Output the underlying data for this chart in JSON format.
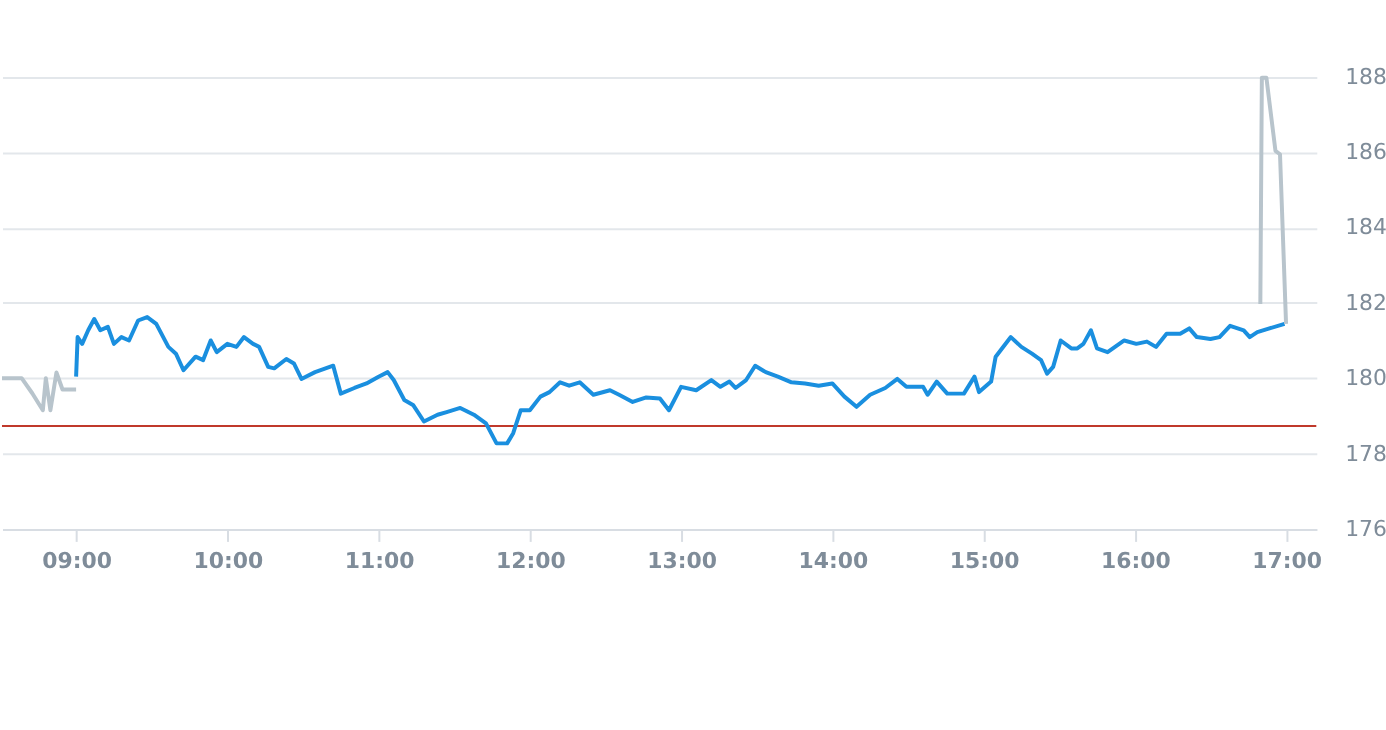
{
  "chart_data": {
    "type": "line",
    "xlim": [
      8.51,
      17.2
    ],
    "ylim": [
      176,
      190
    ],
    "xticks": [
      {
        "value": 9,
        "label": "09:00"
      },
      {
        "value": 10,
        "label": "10:00"
      },
      {
        "value": 11,
        "label": "11:00"
      },
      {
        "value": 12,
        "label": "12:00"
      },
      {
        "value": 13,
        "label": "13:00"
      },
      {
        "value": 14,
        "label": "14:00"
      },
      {
        "value": 15,
        "label": "15:00"
      },
      {
        "value": 16,
        "label": "16:00"
      },
      {
        "value": 17,
        "label": "17:00"
      }
    ],
    "yticks": [
      176,
      178,
      180,
      182,
      184,
      186,
      188
    ],
    "grid": "y",
    "marker": "none",
    "line_style": "solid",
    "series": [
      {
        "color": "#b8c4cc",
        "x": [
          8.51,
          8.64,
          8.71,
          8.78,
          8.8,
          8.83,
          8.87,
          8.91,
          9.0
        ],
        "values": [
          180.0,
          180.0,
          179.6,
          179.15,
          180.0,
          179.15,
          180.15,
          179.7,
          179.7
        ]
      },
      {
        "color": "#1a8fdf",
        "x": [
          9.0,
          9.01,
          9.04,
          9.08,
          9.12,
          9.16,
          9.21,
          9.25,
          9.3,
          9.35,
          9.41,
          9.47,
          9.53,
          9.61,
          9.66,
          9.71,
          9.79,
          9.84,
          9.89,
          9.93,
          10.0,
          10.06,
          10.11,
          10.17,
          10.21,
          10.27,
          10.31,
          10.39,
          10.44,
          10.49,
          10.58,
          10.7,
          10.75,
          10.84,
          10.92,
          11.0,
          11.06,
          11.1,
          11.17,
          11.23,
          11.3,
          11.39,
          11.45,
          11.54,
          11.63,
          11.71,
          11.78,
          11.85,
          11.89,
          11.94,
          12.0,
          12.07,
          12.13,
          12.2,
          12.26,
          12.33,
          12.42,
          12.53,
          12.59,
          12.68,
          12.77,
          12.86,
          12.92,
          13.0,
          13.1,
          13.2,
          13.26,
          13.32,
          13.36,
          13.43,
          13.49,
          13.56,
          13.64,
          13.73,
          13.82,
          13.91,
          14.0,
          14.08,
          14.16,
          14.25,
          14.35,
          14.43,
          14.49,
          14.6,
          14.63,
          14.69,
          14.76,
          14.87,
          14.94,
          14.97,
          15.05,
          15.08,
          15.18,
          15.25,
          15.32,
          15.38,
          15.42,
          15.46,
          15.51,
          15.58,
          15.62,
          15.66,
          15.71,
          15.75,
          15.82,
          15.93,
          16.01,
          16.08,
          16.14,
          16.21,
          16.3,
          16.36,
          16.41,
          16.5,
          16.56,
          16.63,
          16.72,
          16.76,
          16.81,
          16.89,
          16.99
        ],
        "values": [
          180.04,
          181.09,
          180.91,
          181.27,
          181.57,
          181.27,
          181.36,
          180.91,
          181.09,
          181.0,
          181.53,
          181.62,
          181.44,
          180.83,
          180.65,
          180.21,
          180.57,
          180.48,
          181.0,
          180.69,
          180.91,
          180.83,
          181.09,
          180.91,
          180.83,
          180.3,
          180.26,
          180.51,
          180.39,
          179.98,
          180.16,
          180.33,
          179.59,
          179.74,
          179.86,
          180.04,
          180.16,
          179.95,
          179.42,
          179.28,
          178.85,
          179.03,
          179.1,
          179.21,
          179.03,
          178.8,
          178.27,
          178.27,
          178.54,
          179.15,
          179.15,
          179.51,
          179.63,
          179.89,
          179.8,
          179.89,
          179.56,
          179.68,
          179.56,
          179.37,
          179.49,
          179.46,
          179.15,
          179.77,
          179.68,
          179.95,
          179.77,
          179.91,
          179.74,
          179.95,
          180.33,
          180.16,
          180.04,
          179.89,
          179.86,
          179.8,
          179.86,
          179.51,
          179.24,
          179.56,
          179.74,
          179.98,
          179.77,
          179.77,
          179.56,
          179.91,
          179.59,
          179.59,
          180.04,
          179.63,
          179.91,
          180.57,
          181.09,
          180.83,
          180.65,
          180.48,
          180.12,
          180.3,
          181.0,
          180.79,
          180.79,
          180.91,
          181.27,
          180.79,
          180.69,
          181.0,
          180.91,
          180.97,
          180.83,
          181.18,
          181.18,
          181.32,
          181.09,
          181.04,
          181.09,
          181.39,
          181.27,
          181.09,
          181.22,
          181.32,
          181.44
        ]
      },
      {
        "color": "#b8c4cc",
        "x": [
          16.83,
          16.84,
          16.87,
          16.93,
          16.96,
          17.0
        ],
        "values": [
          181.97,
          187.97,
          187.97,
          186.03,
          185.94,
          181.44
        ]
      }
    ],
    "ref_lines": [
      {
        "axis": "y",
        "value": 178.73,
        "color": "#c0392b"
      }
    ]
  }
}
